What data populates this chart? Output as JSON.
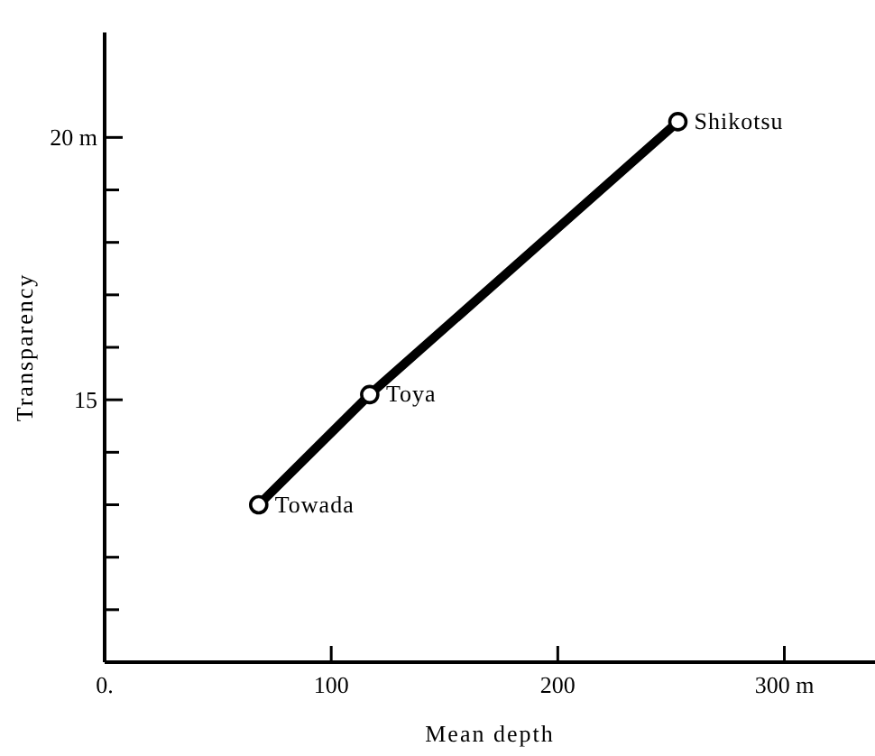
{
  "chart_data": {
    "type": "line",
    "xlabel": "Mean depth",
    "ylabel": "Transparency",
    "x": [
      68,
      117,
      253
    ],
    "series": [
      {
        "color": "#000000",
        "values": [
          13.0,
          15.1,
          20.3
        ]
      }
    ],
    "marker": "circle",
    "line_style": "solid",
    "grid": false,
    "xlim": [
      0,
      340
    ],
    "ylim": [
      10,
      22
    ],
    "xticks": [
      {
        "value": 0,
        "label": "0."
      },
      100,
      200,
      {
        "value": 300,
        "label": "300 m"
      }
    ],
    "yticks": [
      {
        "value": 11,
        "label": null
      },
      {
        "value": 12,
        "label": null
      },
      {
        "value": 13,
        "label": null
      },
      {
        "value": 14,
        "label": null
      },
      15,
      {
        "value": 16,
        "label": null
      },
      {
        "value": 17,
        "label": null
      },
      {
        "value": 18,
        "label": null
      },
      {
        "value": 19,
        "label": null
      },
      {
        "value": 20,
        "label": "20 m"
      }
    ],
    "annotations": [
      {
        "text": "Towada",
        "x": 68,
        "y": 13.0
      },
      {
        "text": "Toya",
        "x": 117,
        "y": 15.1
      },
      {
        "text": "Shikotsu",
        "x": 253,
        "y": 20.3
      }
    ]
  }
}
